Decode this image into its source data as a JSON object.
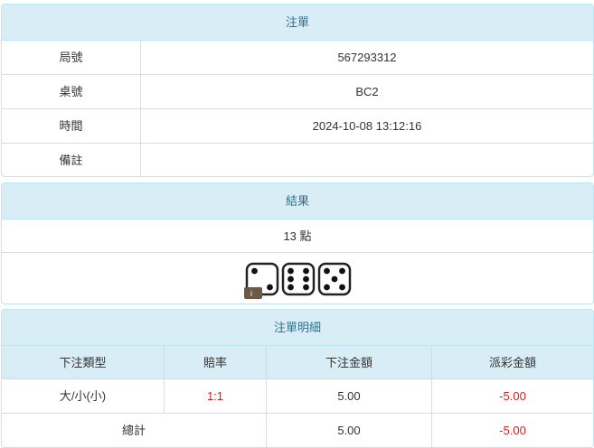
{
  "order": {
    "title": "注單",
    "rows": [
      [
        "局號",
        "567293312"
      ],
      [
        "桌號",
        "BC2"
      ],
      [
        "時間",
        "2024-10-08 13:12:16"
      ],
      [
        "備註"
      ]
    ]
  },
  "result": {
    "title": "結果",
    "summary": "13 點",
    "dice": [
      2,
      6,
      5
    ],
    "badge": "i"
  },
  "details": {
    "title": "注單明細",
    "columns": [
      "下注類型",
      "賠率",
      "下注金額",
      "派彩金額"
    ],
    "rows": [
      [
        "大/小(小)",
        "1:1",
        "5.00",
        "-5.00"
      ]
    ],
    "total": {
      "label": "總計",
      "bet": "5.00",
      "payout": "-5.00"
    }
  }
}
